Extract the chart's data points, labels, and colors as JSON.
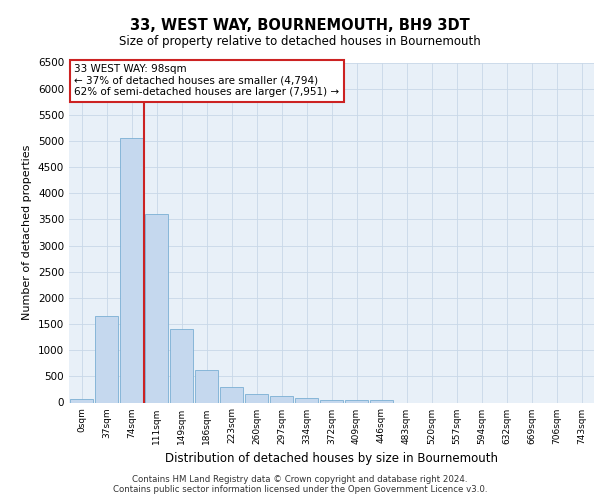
{
  "title": "33, WEST WAY, BOURNEMOUTH, BH9 3DT",
  "subtitle": "Size of property relative to detached houses in Bournemouth",
  "xlabel": "Distribution of detached houses by size in Bournemouth",
  "ylabel": "Number of detached properties",
  "footer_line1": "Contains HM Land Registry data © Crown copyright and database right 2024.",
  "footer_line2": "Contains public sector information licensed under the Open Government Licence v3.0.",
  "categories": [
    "0sqm",
    "37sqm",
    "74sqm",
    "111sqm",
    "149sqm",
    "186sqm",
    "223sqm",
    "260sqm",
    "297sqm",
    "334sqm",
    "372sqm",
    "409sqm",
    "446sqm",
    "483sqm",
    "520sqm",
    "557sqm",
    "594sqm",
    "632sqm",
    "669sqm",
    "706sqm",
    "743sqm"
  ],
  "values": [
    75,
    1650,
    5050,
    3600,
    1400,
    620,
    300,
    155,
    115,
    90,
    50,
    45,
    45,
    0,
    0,
    0,
    0,
    0,
    0,
    0,
    0
  ],
  "bar_color": "#c5d8ee",
  "bar_edge_color": "#7bafd4",
  "grid_color": "#c8d8e8",
  "background_color": "#e8f0f8",
  "vline_x": 2.5,
  "vline_color": "#cc2222",
  "annotation_text": "33 WEST WAY: 98sqm\n← 37% of detached houses are smaller (4,794)\n62% of semi-detached houses are larger (7,951) →",
  "annotation_box_color": "#ffffff",
  "annotation_box_edge": "#cc2222",
  "ylim": [
    0,
    6500
  ],
  "yticks": [
    0,
    500,
    1000,
    1500,
    2000,
    2500,
    3000,
    3500,
    4000,
    4500,
    5000,
    5500,
    6000,
    6500
  ]
}
